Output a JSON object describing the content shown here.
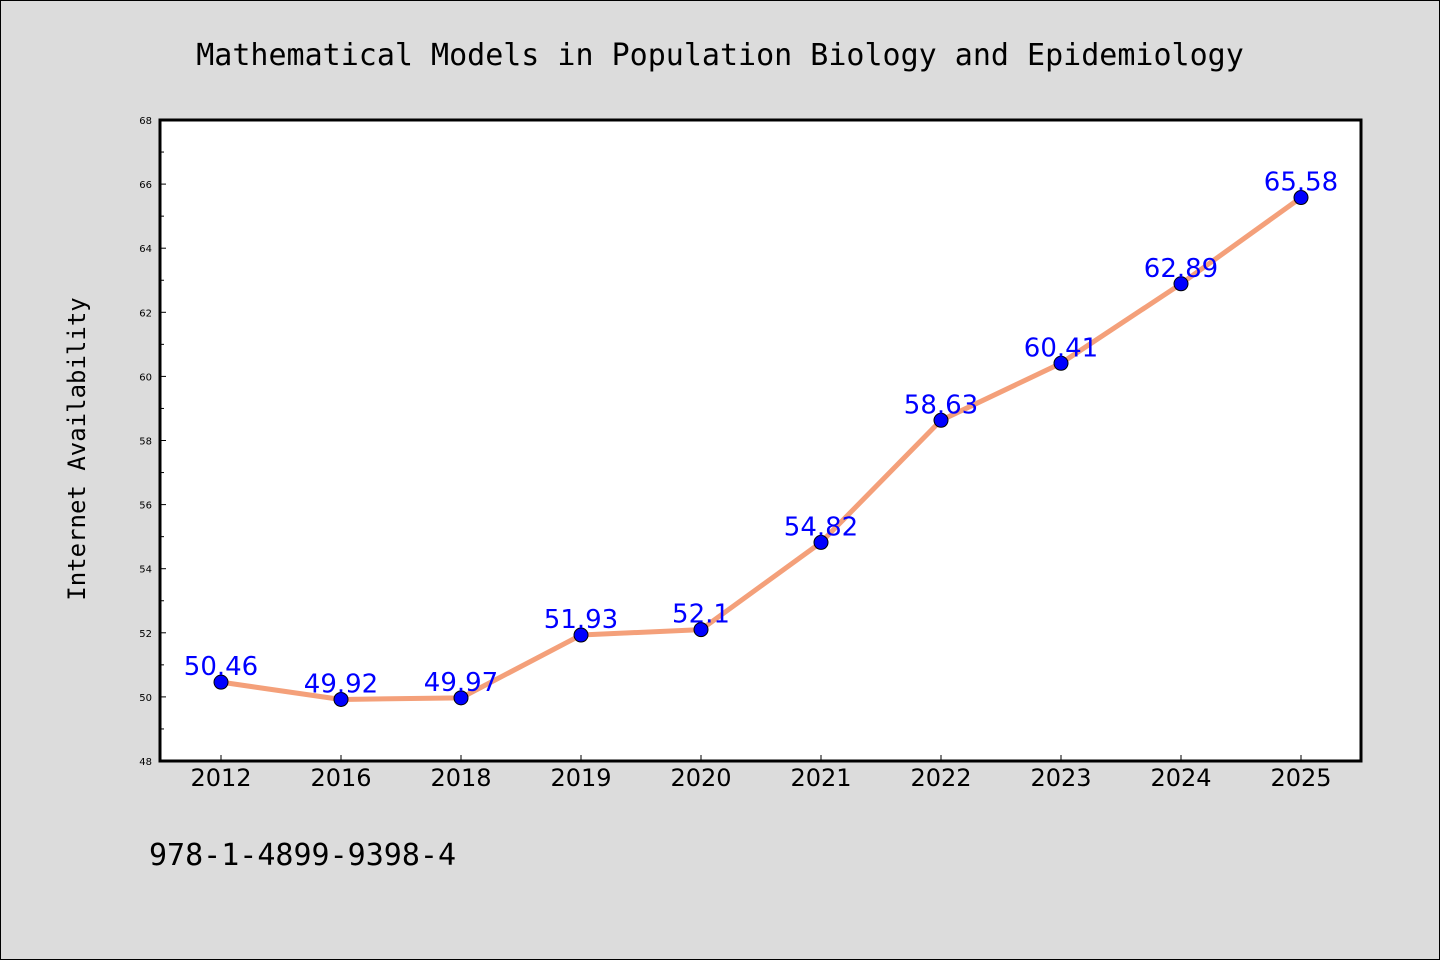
{
  "chart_data": {
    "type": "line",
    "title": "Mathematical Models in Population Biology and Epidemiology",
    "xlabel": "",
    "ylabel": "Internet Availability",
    "categories": [
      "2012",
      "2016",
      "2018",
      "2019",
      "2020",
      "2021",
      "2022",
      "2023",
      "2024",
      "2025"
    ],
    "series": [
      {
        "values": [
          50.46,
          49.92,
          49.97,
          51.93,
          52.1,
          54.82,
          58.63,
          60.41,
          62.89,
          65.58
        ],
        "data_labels": [
          "50.46",
          "49.92",
          "49.97",
          "51.93",
          "52.1",
          "54.82",
          "58.63",
          "60.41",
          "62.89",
          "65.58"
        ]
      }
    ],
    "ylim": [
      48,
      68
    ],
    "yticks": [
      "48",
      "50",
      "52",
      "54",
      "56",
      "58",
      "60",
      "62",
      "64",
      "66",
      "68"
    ],
    "grid": false,
    "line_color": "#f4a07a",
    "marker_color": "#0000ff",
    "label_color": "#0000ff"
  },
  "footer": {
    "isbn": "978-1-4899-9398-4"
  },
  "colors": {
    "background": "#dcdcdc",
    "plot_background": "#ffffff"
  }
}
